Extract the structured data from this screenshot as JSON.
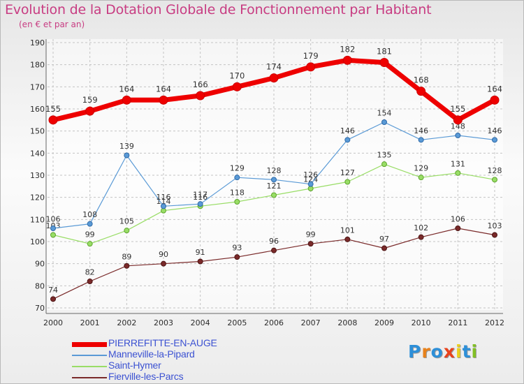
{
  "header": {
    "title": "Evolution de la Dotation Globale de Fonctionnement par Habitant",
    "subtitle": "(en € et par an)"
  },
  "logo": {
    "text": "Proxiti"
  },
  "chart_data": {
    "type": "line",
    "title": "Evolution de la Dotation Globale de Fonctionnement par Habitant",
    "subtitle": "(en € et par an)",
    "x": [
      "2000",
      "2001",
      "2002",
      "2003",
      "2004",
      "2005",
      "2006",
      "2007",
      "2008",
      "2009",
      "2010",
      "2011",
      "2012"
    ],
    "ylim": [
      70,
      190
    ],
    "yticks": [
      70,
      80,
      90,
      100,
      110,
      120,
      130,
      140,
      150,
      160,
      170,
      180,
      190
    ],
    "grid": true,
    "legend_position": "bottom-left",
    "series": [
      {
        "name": "PIERREFITTE-EN-AUGE",
        "color": "#ee0000",
        "values": [
          155,
          159,
          164,
          164,
          166,
          170,
          174,
          179,
          182,
          181,
          168,
          155,
          164
        ]
      },
      {
        "name": "Manneville-la-Pipard",
        "color": "#5a9ad6",
        "values": [
          106,
          108,
          139,
          116,
          117,
          129,
          128,
          126,
          146,
          154,
          146,
          148,
          146
        ]
      },
      {
        "name": "Saint-Hymer",
        "color": "#99dd66",
        "values": [
          103,
          99,
          105,
          114,
          116,
          118,
          121,
          124,
          127,
          135,
          129,
          131,
          128
        ]
      },
      {
        "name": "Fierville-les-Parcs",
        "color": "#7a2a2a",
        "values": [
          74,
          82,
          89,
          90,
          91,
          93,
          96,
          99,
          101,
          97,
          102,
          106,
          103
        ]
      }
    ]
  }
}
